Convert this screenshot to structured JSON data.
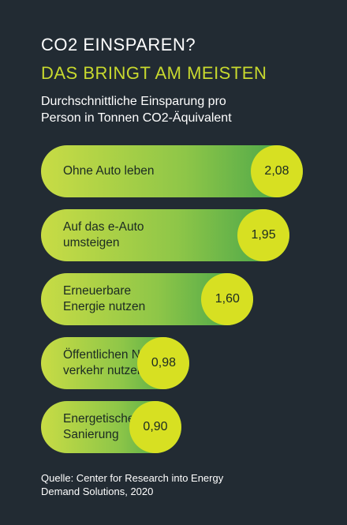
{
  "title_line1": "CO2 EINSPAREN?",
  "title_line2": "DAS BRINGT AM MEISTEN",
  "subtitle": "Durchschnittliche Einsparung pro\nPerson in Tonnen CO2-Äquivalent",
  "source": "Quelle: Center for Research into Energy\nDemand Solutions, 2020",
  "colors": {
    "background": "#222b33",
    "title_accent": "#c8d92e",
    "bubble": "#d7e022",
    "bar_gradient_start": "#c8dc45",
    "bar_gradient_end": "#3fa14a"
  },
  "chart_data": {
    "type": "bar",
    "orientation": "horizontal",
    "categories": [
      "Ohne Auto leben",
      "Auf das e-Auto\numsteigen",
      "Erneuerbare\nEnergie nutzen",
      "Öffentlichen Nah-\nverkehr nutzen",
      "Energetische\nSanierung"
    ],
    "values": [
      2.08,
      1.95,
      1.6,
      0.98,
      0.9
    ],
    "value_labels": [
      "2,08",
      "1,95",
      "1,60",
      "0,98",
      "0,90"
    ],
    "title": "CO2 EINSPAREN? DAS BRINGT AM MEISTEN",
    "ylabel": "Durchschnittliche Einsparung pro Person in Tonnen CO2-Äquivalent"
  }
}
